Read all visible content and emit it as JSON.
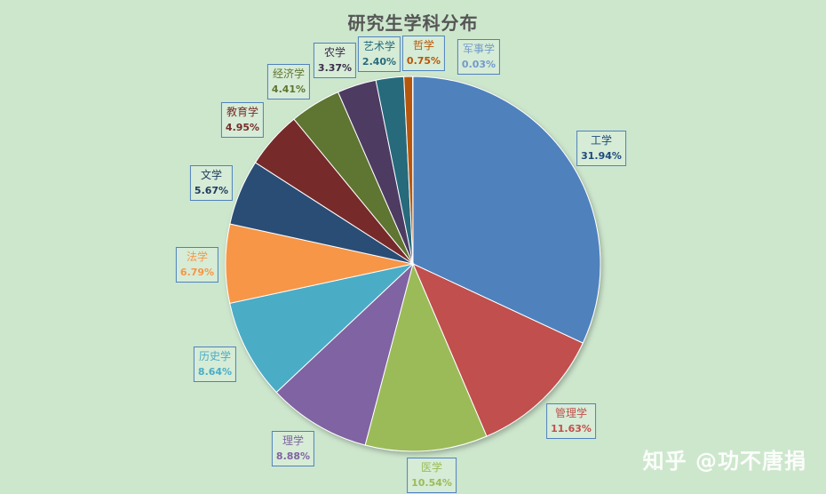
{
  "chart_data": {
    "type": "pie",
    "title": "研究生学科分布",
    "slices": [
      {
        "name": "工学",
        "percent": "31.94%",
        "value": 31.94,
        "color": "#4f81bd",
        "label_color": "#1f497d"
      },
      {
        "name": "管理学",
        "percent": "11.63%",
        "value": 11.63,
        "color": "#c0504d",
        "label_color": "#c0504d"
      },
      {
        "name": "医学",
        "percent": "10.54%",
        "value": 10.54,
        "color": "#9bbb59",
        "label_color": "#9bbb59"
      },
      {
        "name": "理学",
        "percent": "8.88%",
        "value": 8.88,
        "color": "#8064a2",
        "label_color": "#8064a2"
      },
      {
        "name": "历史学",
        "percent": "8.64%",
        "value": 8.64,
        "color": "#4bacc6",
        "label_color": "#4bacc6"
      },
      {
        "name": "法学",
        "percent": "6.79%",
        "value": 6.79,
        "color": "#f79646",
        "label_color": "#f79646"
      },
      {
        "name": "文学",
        "percent": "5.67%",
        "value": 5.67,
        "color": "#2c4d75",
        "label_color": "#1f3a5f"
      },
      {
        "name": "教育学",
        "percent": "4.95%",
        "value": 4.95,
        "color": "#772c2a",
        "label_color": "#772c2a"
      },
      {
        "name": "经济学",
        "percent": "4.41%",
        "value": 4.41,
        "color": "#5f7530",
        "label_color": "#5f7530"
      },
      {
        "name": "农学",
        "percent": "3.37%",
        "value": 3.37,
        "color": "#4d3b62",
        "label_color": "#3a2d4a"
      },
      {
        "name": "艺术学",
        "percent": "2.40%",
        "value": 2.4,
        "color": "#276a7c",
        "label_color": "#276a7c"
      },
      {
        "name": "哲学",
        "percent": "0.75%",
        "value": 0.75,
        "color": "#b65708",
        "label_color": "#b65708"
      },
      {
        "name": "军事学",
        "percent": "0.03%",
        "value": 0.03,
        "color": "#729aca",
        "label_color": "#729aca"
      }
    ],
    "legend": "none"
  },
  "watermark": "知乎 @功不唐捐"
}
